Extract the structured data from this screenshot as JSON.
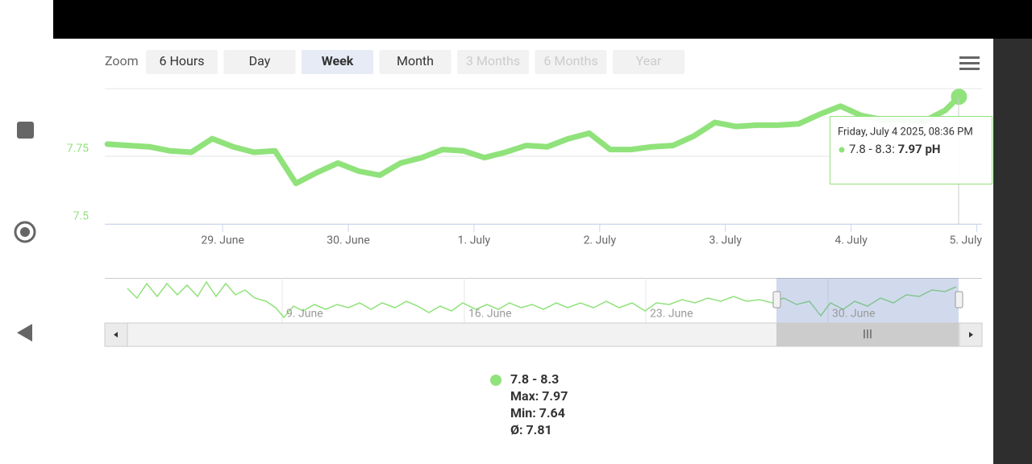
{
  "zoom": {
    "label": "Zoom",
    "buttons": [
      {
        "text": "6 Hours",
        "state": "normal"
      },
      {
        "text": "Day",
        "state": "normal"
      },
      {
        "text": "Week",
        "state": "selected"
      },
      {
        "text": "Month",
        "state": "normal"
      },
      {
        "text": "3 Months",
        "state": "disabled"
      },
      {
        "text": "6 Months",
        "state": "disabled"
      },
      {
        "text": "Year",
        "state": "disabled"
      }
    ]
  },
  "chart_data": {
    "type": "line",
    "x": [
      "2025-06-28T02:00",
      "2025-06-28T06:00",
      "2025-06-28T10:00",
      "2025-06-28T14:00",
      "2025-06-28T18:00",
      "2025-06-28T22:00",
      "2025-06-29T02:00",
      "2025-06-29T06:00",
      "2025-06-29T10:00",
      "2025-06-29T14:00",
      "2025-06-29T18:00",
      "2025-06-29T22:00",
      "2025-06-30T02:00",
      "2025-06-30T06:00",
      "2025-06-30T10:00",
      "2025-06-30T14:00",
      "2025-06-30T18:00",
      "2025-06-30T22:00",
      "2025-07-01T02:00",
      "2025-07-01T06:00",
      "2025-07-01T10:00",
      "2025-07-01T14:00",
      "2025-07-01T18:00",
      "2025-07-01T22:00",
      "2025-07-02T02:00",
      "2025-07-02T06:00",
      "2025-07-02T10:00",
      "2025-07-02T14:00",
      "2025-07-02T18:00",
      "2025-07-02T22:00",
      "2025-07-03T02:00",
      "2025-07-03T06:00",
      "2025-07-03T10:00",
      "2025-07-03T14:00",
      "2025-07-03T18:00",
      "2025-07-03T22:00",
      "2025-07-04T02:00",
      "2025-07-04T06:00",
      "2025-07-04T10:00",
      "2025-07-04T14:00",
      "2025-07-04T18:00",
      "2025-07-04T20:36"
    ],
    "series": [
      {
        "name": "7.8 - 8.3",
        "color": "#90e27b",
        "values": [
          7.795,
          7.79,
          7.785,
          7.77,
          7.765,
          7.815,
          7.785,
          7.765,
          7.77,
          7.65,
          7.69,
          7.725,
          7.695,
          7.68,
          7.725,
          7.745,
          7.775,
          7.77,
          7.745,
          7.765,
          7.79,
          7.785,
          7.815,
          7.835,
          7.775,
          7.775,
          7.785,
          7.79,
          7.825,
          7.875,
          7.86,
          7.865,
          7.865,
          7.87,
          7.905,
          7.935,
          7.9,
          7.885,
          7.885,
          7.88,
          7.92,
          7.97
        ]
      }
    ],
    "xlim": [
      "2025-06-28T01:30",
      "2025-07-05T01:00"
    ],
    "xticks": [
      {
        "value": "2025-06-29T00:00",
        "label": "29. June"
      },
      {
        "value": "2025-06-30T00:00",
        "label": "30. June"
      },
      {
        "value": "2025-07-01T00:00",
        "label": "1. July"
      },
      {
        "value": "2025-07-02T00:00",
        "label": "2. July"
      },
      {
        "value": "2025-07-03T00:00",
        "label": "3. July"
      },
      {
        "value": "2025-07-04T00:00",
        "label": "4. July"
      },
      {
        "value": "2025-07-05T00:00",
        "label": "5. July"
      }
    ],
    "ylim": [
      7.5,
      8.0
    ],
    "yticks": [
      7.5,
      7.75
    ],
    "grid": true
  },
  "tooltip": {
    "date": "Friday, July 4 2025, 08:36 PM",
    "label": "7.8 - 8.3:",
    "value": "7.97 pH"
  },
  "navigator": {
    "labels": [
      "9. June",
      "16. June",
      "23. June",
      "30. June"
    ]
  },
  "legend": {
    "stats": [
      "Max: 7.97",
      "Min: 7.64",
      "Ø: 7.81"
    ]
  }
}
